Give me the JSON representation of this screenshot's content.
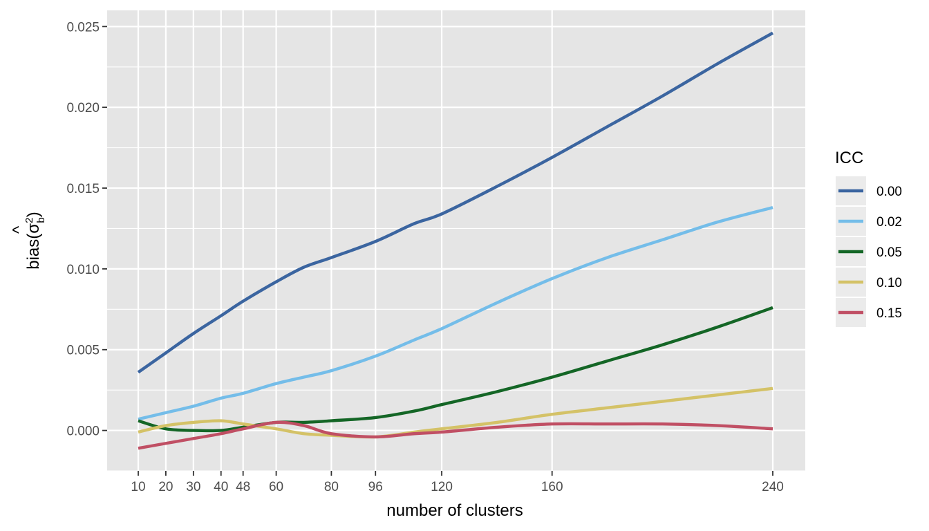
{
  "chart_data": {
    "type": "line",
    "xlabel": "number of clusters",
    "ylabel_prefix": "bias(",
    "ylabel_sigma": "σ",
    "ylabel_hat": "^",
    "ylabel_sup": "2",
    "ylabel_sub": "b",
    "ylabel_suffix": ")",
    "xlim": [
      10,
      240
    ],
    "ylim": [
      -0.0025,
      0.026
    ],
    "x_ticks": [
      10,
      20,
      30,
      40,
      48,
      60,
      80,
      96,
      120,
      160,
      240
    ],
    "x_tick_labels": [
      "10",
      "20",
      "30",
      "40",
      "48",
      "60",
      "80",
      "96",
      "120",
      "160",
      "240"
    ],
    "y_ticks": [
      0.0,
      0.005,
      0.01,
      0.015,
      0.02,
      0.025
    ],
    "y_tick_labels": [
      "0.000",
      "0.005",
      "0.010",
      "0.015",
      "0.020",
      "0.025"
    ],
    "legend_title": "ICC",
    "legend_position": "right",
    "grid": true,
    "panel_background": "#e5e5e5",
    "grid_color": "#ffffff",
    "series": [
      {
        "name": "0.00",
        "color": "#3b65a0",
        "x": [
          10,
          20,
          30,
          40,
          48,
          60,
          70,
          80,
          96,
          110,
          120,
          140,
          160,
          180,
          200,
          220,
          240
        ],
        "y": [
          0.0036,
          0.0048,
          0.006,
          0.0071,
          0.008,
          0.0092,
          0.0101,
          0.0107,
          0.0117,
          0.0128,
          0.0134,
          0.0151,
          0.0169,
          0.0188,
          0.0207,
          0.0227,
          0.0246
        ]
      },
      {
        "name": "0.02",
        "color": "#74bde9",
        "x": [
          10,
          20,
          30,
          40,
          48,
          60,
          70,
          80,
          96,
          110,
          120,
          140,
          160,
          180,
          200,
          220,
          240
        ],
        "y": [
          0.0007,
          0.0011,
          0.0015,
          0.002,
          0.0023,
          0.0029,
          0.0033,
          0.0037,
          0.0046,
          0.0056,
          0.0063,
          0.0079,
          0.0094,
          0.0107,
          0.0118,
          0.0129,
          0.0138
        ]
      },
      {
        "name": "0.05",
        "color": "#146626",
        "x": [
          10,
          20,
          30,
          40,
          48,
          60,
          70,
          80,
          96,
          110,
          120,
          140,
          160,
          180,
          200,
          220,
          240
        ],
        "y": [
          0.0006,
          0.0001,
          0.0,
          0.0,
          0.0002,
          0.0005,
          0.0005,
          0.0006,
          0.0008,
          0.0012,
          0.0016,
          0.0024,
          0.0033,
          0.0043,
          0.0053,
          0.0064,
          0.0076
        ]
      },
      {
        "name": "0.10",
        "color": "#d4c267",
        "x": [
          10,
          20,
          30,
          40,
          48,
          60,
          70,
          80,
          96,
          110,
          120,
          140,
          160,
          180,
          200,
          220,
          240
        ],
        "y": [
          -0.0001,
          0.0003,
          0.0005,
          0.0006,
          0.0004,
          0.0001,
          -0.0002,
          -0.0003,
          -0.0004,
          -0.0001,
          0.0001,
          0.0005,
          0.001,
          0.0014,
          0.0018,
          0.0022,
          0.0026
        ]
      },
      {
        "name": "0.15",
        "color": "#c04f64",
        "x": [
          10,
          20,
          30,
          40,
          48,
          60,
          70,
          80,
          96,
          110,
          120,
          140,
          160,
          180,
          200,
          220,
          240
        ],
        "y": [
          -0.0011,
          -0.0008,
          -0.0005,
          -0.0002,
          0.0001,
          0.0005,
          0.0003,
          -0.0002,
          -0.0004,
          -0.0002,
          -0.0001,
          0.0002,
          0.0004,
          0.0004,
          0.0004,
          0.0003,
          0.0001
        ]
      }
    ]
  }
}
